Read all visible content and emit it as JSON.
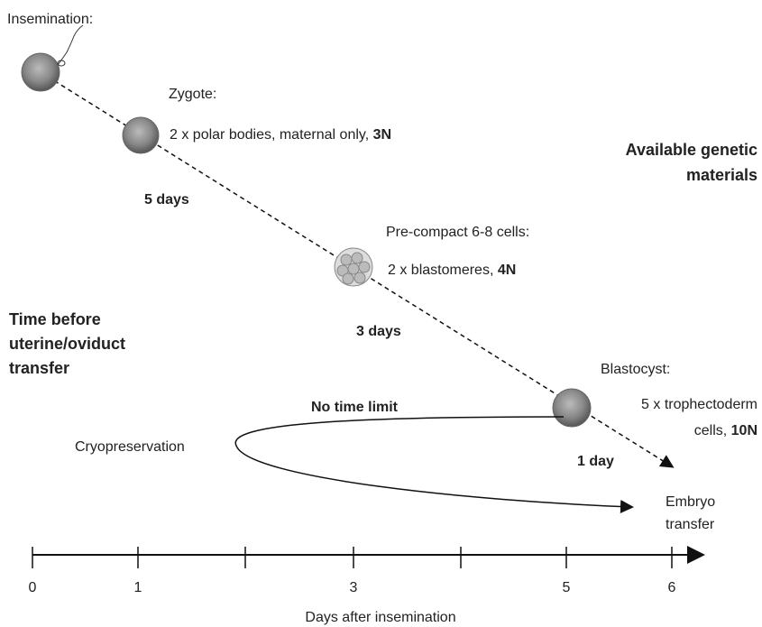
{
  "insemination": {
    "label": "Insemination:"
  },
  "zygote": {
    "label": "Zygote:",
    "detail": "2 x polar bodies, maternal only, ",
    "detail_bold": "3N"
  },
  "precompact": {
    "label": "Pre-compact 6-8 cells:",
    "detail": "2 x blastomeres, ",
    "detail_bold": "4N"
  },
  "blastocyst": {
    "label": "Blastocyst:",
    "detail_line1": "5 x trophectoderm",
    "detail_line2": "cells, ",
    "detail_bold": "10N"
  },
  "right_heading": [
    "Available genetic",
    "materials"
  ],
  "left_heading": [
    "Time before",
    "uterine/oviduct",
    "transfer"
  ],
  "intervals": [
    "5 days",
    "3 days",
    "1 day"
  ],
  "no_time_limit": "No time limit",
  "cryopreservation": "Cryopreservation",
  "embryo_transfer": [
    "Embryo",
    "transfer"
  ],
  "axis": {
    "tick_labels": [
      "0",
      "1",
      "3",
      "5",
      "6"
    ],
    "title": "Days after insemination"
  }
}
